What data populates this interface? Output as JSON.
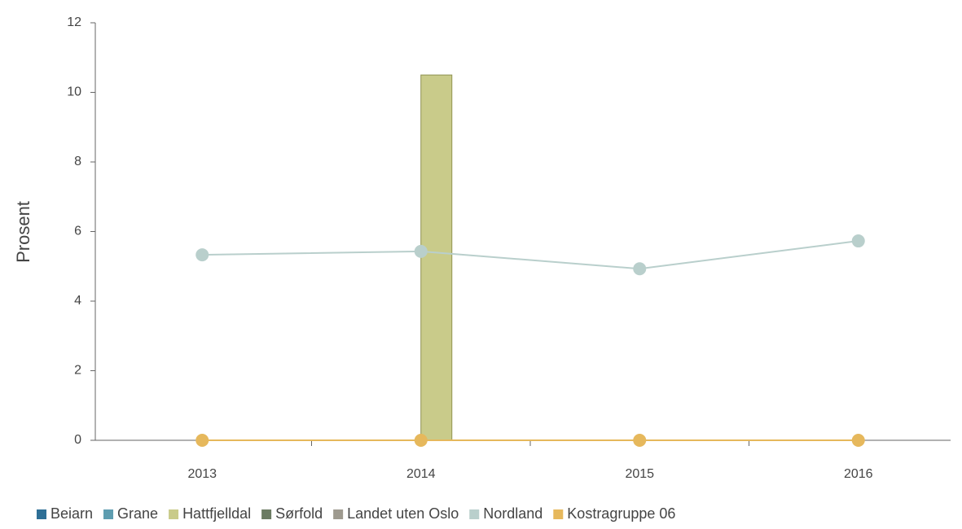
{
  "chart_data": {
    "type": "bar",
    "y_label": "Prosent",
    "categories": [
      "2013",
      "2014",
      "2015",
      "2016"
    ],
    "ylim": [
      0,
      12
    ],
    "yticks": [
      0,
      2,
      4,
      6,
      8,
      10,
      12
    ],
    "series": [
      {
        "name": "Beiarn",
        "type": "bar",
        "color": "#2e6f96",
        "values": [
          null,
          null,
          null,
          null
        ]
      },
      {
        "name": "Grane",
        "type": "bar",
        "color": "#5e9db0",
        "values": [
          null,
          null,
          null,
          null
        ]
      },
      {
        "name": "Hattfjelldal",
        "type": "bar",
        "color": "#c9cb8a",
        "values": [
          null,
          10.5,
          null,
          null
        ]
      },
      {
        "name": "Sørfold",
        "type": "bar",
        "color": "#6b7b62",
        "values": [
          null,
          null,
          null,
          null
        ]
      },
      {
        "name": "Landet uten Oslo",
        "type": "line",
        "color": "#9e9a8f",
        "values": [
          null,
          null,
          null,
          null
        ]
      },
      {
        "name": "Nordland",
        "type": "line",
        "color": "#b9cfcc",
        "values": [
          5.33,
          5.43,
          4.93,
          5.73
        ]
      },
      {
        "name": "Kostragruppe 06",
        "type": "line",
        "color": "#e6b85c",
        "values": [
          0,
          0,
          0,
          0
        ]
      }
    ]
  }
}
